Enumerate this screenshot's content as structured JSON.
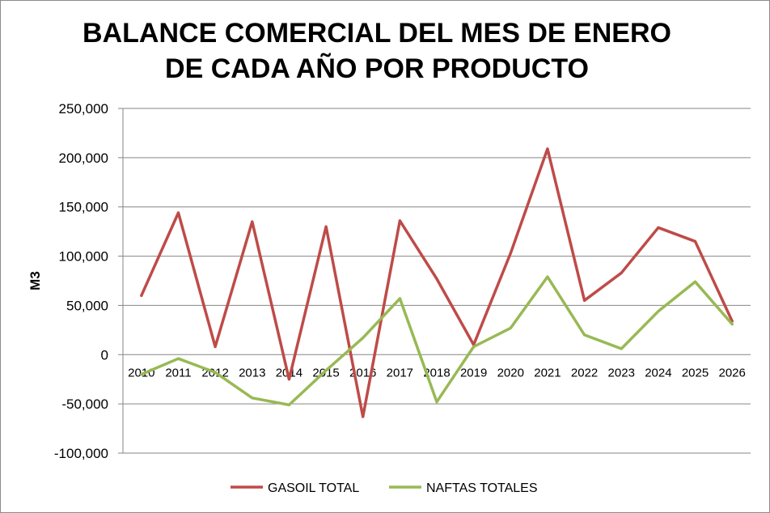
{
  "chart_data": {
    "type": "line",
    "title_lines": [
      "BALANCE COMERCIAL DEL MES DE ENERO",
      "DE CADA AÑO POR PRODUCTO"
    ],
    "xlabel": "",
    "ylabel": "M3",
    "ylim": [
      -100000,
      250000
    ],
    "yticks": [
      250000,
      200000,
      150000,
      100000,
      50000,
      0,
      -50000,
      -100000
    ],
    "ytick_labels": [
      "250,000",
      "200,000",
      "150,000",
      "100,000",
      "50,000",
      "0",
      "-50,000",
      "-100,000"
    ],
    "categories": [
      "2010",
      "2011",
      "2012",
      "2013",
      "2014",
      "2015",
      "2016",
      "2017",
      "2018",
      "2019",
      "2020",
      "2021",
      "2022",
      "2023",
      "2024",
      "2025",
      "2026"
    ],
    "series": [
      {
        "name": "GASOIL TOTAL",
        "color": "#be4b48",
        "values": [
          60000,
          144000,
          8000,
          135000,
          -25000,
          130000,
          -63000,
          136000,
          77000,
          10000,
          103000,
          209000,
          55000,
          83000,
          129000,
          115000,
          34000
        ]
      },
      {
        "name": "NAFTAS TOTALES",
        "color": "#98b954",
        "values": [
          -20000,
          -4000,
          -18000,
          -44000,
          -51000,
          -16000,
          17000,
          57000,
          -48000,
          8000,
          27000,
          79000,
          20000,
          6000,
          44000,
          74000,
          31000
        ]
      }
    ],
    "grid": "horizontal",
    "legend_position": "bottom"
  }
}
